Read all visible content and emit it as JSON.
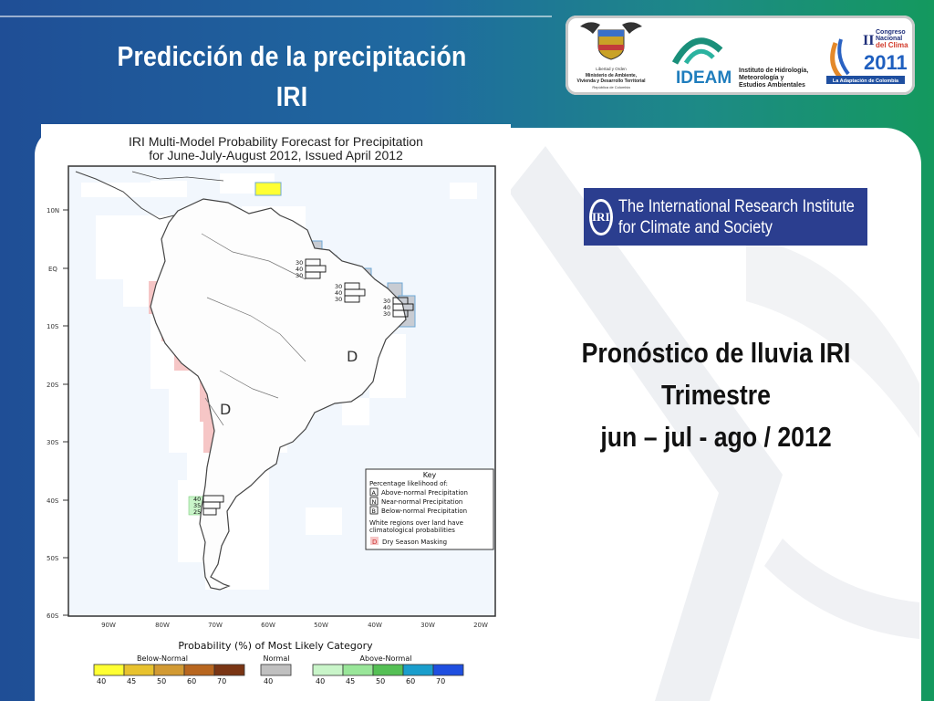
{
  "slide": {
    "title_line1": "Predicción de la precipitación",
    "title_line2": "IRI"
  },
  "logos": {
    "ministry": [
      "Libertad y Orden",
      "Ministerio de Ambiente,",
      "Vivienda y Desarrollo Territorial",
      "República de Colombia"
    ],
    "ideam_name": "IDEAM",
    "ideam_desc": [
      "Instituto de Hidrología,",
      "Meteorología y",
      "Estudios Ambientales"
    ],
    "congress": [
      "II",
      "Congreso",
      "Nacional",
      "del Clima",
      "2011",
      "La Adaptación de Colombia"
    ]
  },
  "map": {
    "title_line1": "IRI Multi-Model Probability Forecast for Precipitation",
    "title_line2": "for June-July-August 2012, Issued April 2012",
    "lat_labels": [
      "10N",
      "EQ",
      "10S",
      "20S",
      "30S",
      "40S",
      "50S",
      "60S"
    ],
    "lon_labels": [
      "90W",
      "80W",
      "70W",
      "60W",
      "50W",
      "40W",
      "30W",
      "20W"
    ],
    "region_labels": [
      "D",
      "D"
    ],
    "boxes": [
      {
        "values": [
          "30",
          "40",
          "30"
        ]
      },
      {
        "values": [
          "30",
          "40",
          "30"
        ]
      },
      {
        "values": [
          "30",
          "40",
          "30"
        ]
      },
      {
        "values": [
          "40",
          "35",
          "25"
        ]
      }
    ],
    "key": {
      "title": "Key",
      "subtitle": "Percentage likelihood of:",
      "rows": [
        {
          "letter": "A",
          "text": "Above-normal Precipitation"
        },
        {
          "letter": "N",
          "text": "Near-normal Precipitation"
        },
        {
          "letter": "B",
          "text": "Below-normal Precipitation"
        }
      ],
      "note_line1": "White regions over land have",
      "note_line2": "climatological probabilities",
      "dry_letter": "D",
      "dry_text": "Dry Season Masking"
    },
    "colorbar": {
      "title": "Probability (%) of Most Likely Category",
      "below_label": "Below-Normal",
      "normal_label": "Normal",
      "above_label": "Above-Normal",
      "below": [
        {
          "value": "40",
          "color": "#ffff33"
        },
        {
          "value": "45",
          "color": "#e8c22e"
        },
        {
          "value": "50",
          "color": "#d29a33"
        },
        {
          "value": "60",
          "color": "#b8661f"
        },
        {
          "value": "70",
          "color": "#7a3514"
        }
      ],
      "normal": [
        {
          "value": "40",
          "color": "#c0c0c0"
        }
      ],
      "above": [
        {
          "value": "40",
          "color": "#c9f5c9"
        },
        {
          "value": "45",
          "color": "#99e699"
        },
        {
          "value": "50",
          "color": "#55c055"
        },
        {
          "value": "60",
          "color": "#1a9ecc"
        },
        {
          "value": "70",
          "color": "#1f4fe0"
        }
      ]
    }
  },
  "iri_logo": {
    "mark": "IRI",
    "line1": "The International Research Institute",
    "line2": "for Climate and Society"
  },
  "forecast": {
    "line1": "Pronóstico de lluvia IRI",
    "line2": "Trimestre",
    "line3": "jun – jul - ago / 2012"
  },
  "colors": {
    "background_left": "#1f4e96",
    "background_right": "#14995e",
    "dry_mask": "#f6c6c6",
    "above_normal_light": "#c9f5c9",
    "near_normal": "#c0c0c0",
    "below_normal_yellow": "#ffff33",
    "iri_blue": "#2b3e8f"
  }
}
